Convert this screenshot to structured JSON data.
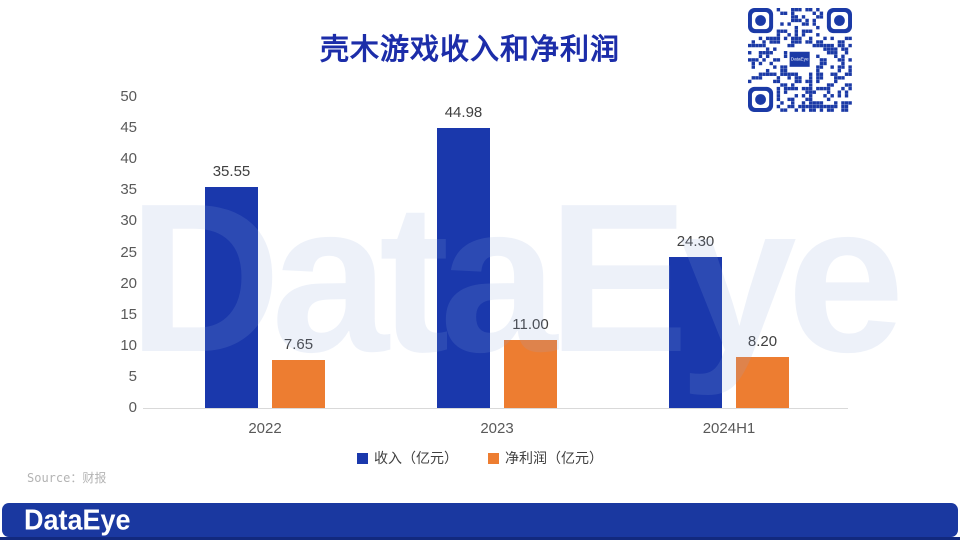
{
  "title": "壳木游戏收入和净利润",
  "watermark": "DataEye",
  "qr_label": "DataEye",
  "source": "Source：财报",
  "footer": {
    "logo_text": "DataEye"
  },
  "colors": {
    "title": "#1C2DA9",
    "revenue_bar": "#1A38AC",
    "profit_bar": "#ED7D31",
    "axis_line": "#D9D9D9",
    "tick_text": "#595959",
    "value_text": "#404040",
    "footer_bar": "#1A38A0",
    "footer_strip": "#12297E",
    "qr": "#1B3AA6"
  },
  "chart_data": {
    "type": "bar",
    "title": "壳木游戏收入和净利润",
    "categories": [
      "2022",
      "2023",
      "2024H1"
    ],
    "series": [
      {
        "key": "revenue",
        "name": "收入（亿元）",
        "color": "#1A38AC",
        "values": [
          35.55,
          44.98,
          24.3
        ]
      },
      {
        "key": "profit",
        "name": "净利润（亿元）",
        "color": "#ED7D31",
        "values": [
          7.65,
          11.0,
          8.2
        ]
      }
    ],
    "xlabel": "",
    "ylabel": "",
    "ylim": [
      0,
      50
    ],
    "yticks": [
      0,
      5,
      10,
      15,
      20,
      25,
      30,
      35,
      40,
      45,
      50
    ],
    "grid": false,
    "legend_position": "bottom",
    "value_label_format": "2dp"
  }
}
